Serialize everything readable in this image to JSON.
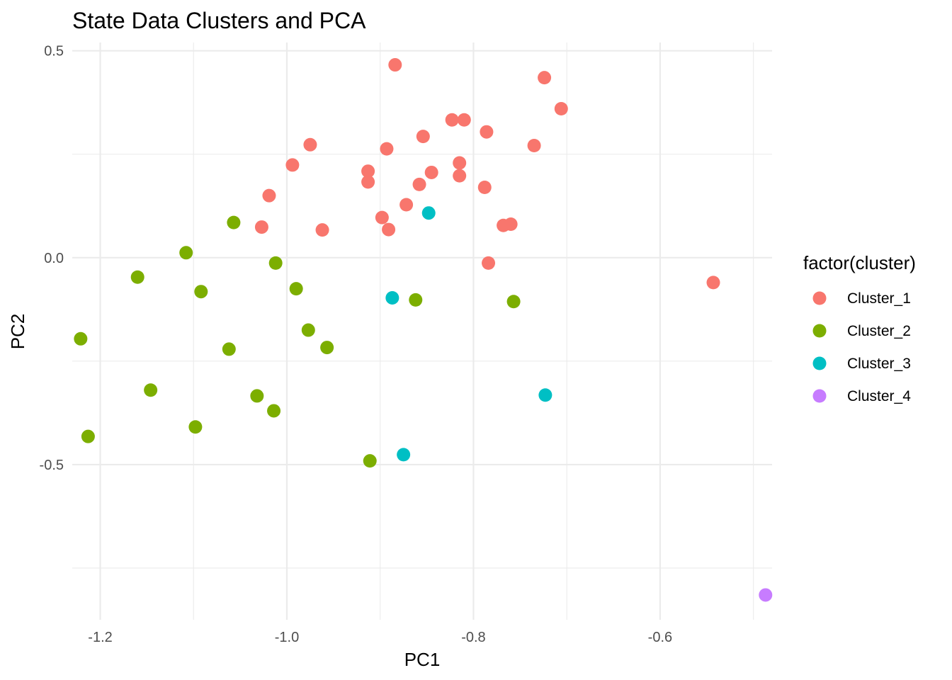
{
  "chart_data": {
    "type": "scatter",
    "title": "State Data Clusters and PCA",
    "xlabel": "PC1",
    "ylabel": "PC2",
    "xlim": [
      -1.23,
      -0.48
    ],
    "ylim": [
      -0.875,
      0.52
    ],
    "x_ticks": [
      -1.2,
      -1.0,
      -0.8,
      -0.6
    ],
    "x_tick_labels": [
      "-1.2",
      "-1.0",
      "-0.8",
      "-0.6"
    ],
    "y_ticks": [
      0.5,
      0.0,
      -0.5
    ],
    "y_tick_labels": [
      "0.5",
      "0.0",
      "-0.5"
    ],
    "grid": true,
    "legend": {
      "title": "factor(cluster)",
      "position": "right"
    },
    "series": [
      {
        "name": "Cluster_1",
        "color": "#F8766D",
        "points": [
          [
            -0.884,
            0.466
          ],
          [
            -0.724,
            0.435
          ],
          [
            -0.706,
            0.36
          ],
          [
            -0.823,
            0.333
          ],
          [
            -0.81,
            0.333
          ],
          [
            -0.786,
            0.304
          ],
          [
            -0.854,
            0.293
          ],
          [
            -0.735,
            0.271
          ],
          [
            -0.975,
            0.273
          ],
          [
            -0.893,
            0.263
          ],
          [
            -0.994,
            0.224
          ],
          [
            -0.815,
            0.229
          ],
          [
            -0.913,
            0.209
          ],
          [
            -0.845,
            0.206
          ],
          [
            -0.815,
            0.198
          ],
          [
            -0.913,
            0.183
          ],
          [
            -0.858,
            0.177
          ],
          [
            -0.788,
            0.17
          ],
          [
            -1.019,
            0.15
          ],
          [
            -0.872,
            0.128
          ],
          [
            -0.898,
            0.097
          ],
          [
            -0.768,
            0.078
          ],
          [
            -0.76,
            0.081
          ],
          [
            -1.027,
            0.074
          ],
          [
            -0.962,
            0.067
          ],
          [
            -0.891,
            0.068
          ],
          [
            -0.784,
            -0.013
          ],
          [
            -0.543,
            -0.06
          ]
        ]
      },
      {
        "name": "Cluster_2",
        "color": "#7CAE00",
        "points": [
          [
            -1.057,
            0.085
          ],
          [
            -1.108,
            0.012
          ],
          [
            -1.012,
            -0.013
          ],
          [
            -1.16,
            -0.047
          ],
          [
            -1.092,
            -0.082
          ],
          [
            -0.99,
            -0.075
          ],
          [
            -0.862,
            -0.102
          ],
          [
            -0.757,
            -0.106
          ],
          [
            -0.977,
            -0.175
          ],
          [
            -1.221,
            -0.196
          ],
          [
            -0.957,
            -0.217
          ],
          [
            -1.062,
            -0.221
          ],
          [
            -1.146,
            -0.32
          ],
          [
            -1.032,
            -0.334
          ],
          [
            -1.014,
            -0.37
          ],
          [
            -1.098,
            -0.409
          ],
          [
            -1.213,
            -0.432
          ],
          [
            -0.911,
            -0.491
          ]
        ]
      },
      {
        "name": "Cluster_3",
        "color": "#00BFC4",
        "points": [
          [
            -0.848,
            0.108
          ],
          [
            -0.887,
            -0.097
          ],
          [
            -0.723,
            -0.332
          ],
          [
            -0.875,
            -0.476
          ]
        ]
      },
      {
        "name": "Cluster_4",
        "color": "#C77CFF",
        "points": [
          [
            -0.487,
            -0.815
          ]
        ]
      }
    ]
  }
}
